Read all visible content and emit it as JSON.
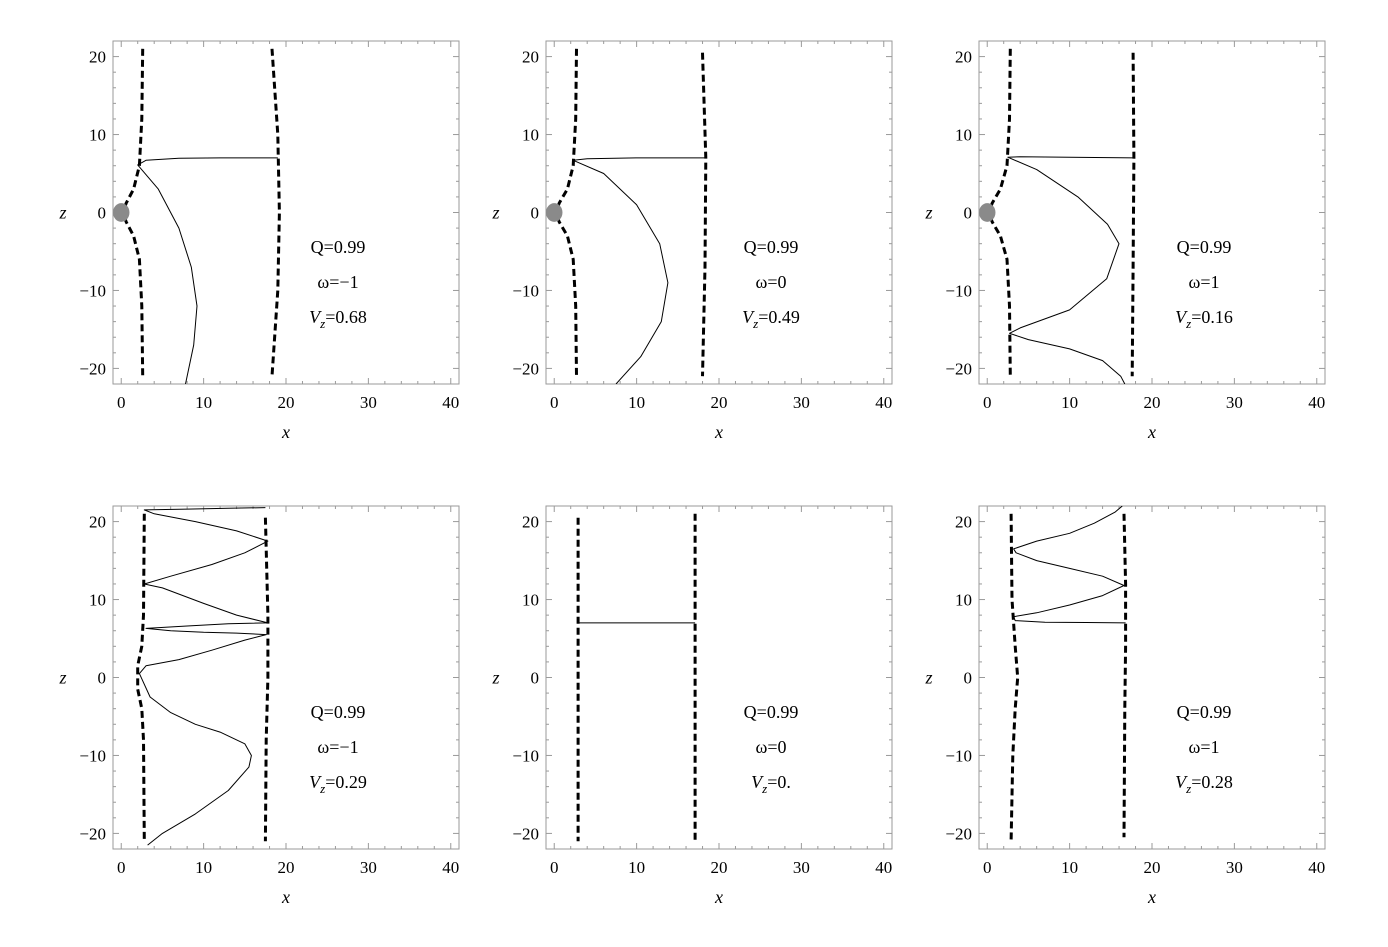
{
  "figure": {
    "panels": [
      {
        "annotation": {
          "q": "Q=0.99",
          "omega": "ω=−1",
          "vz_sym": "V",
          "vz_sub": "z",
          "vz_val": "=0.68"
        }
      },
      {
        "annotation": {
          "q": "Q=0.99",
          "omega": "ω=0",
          "vz_sym": "V",
          "vz_sub": "z",
          "vz_val": "=0.49"
        }
      },
      {
        "annotation": {
          "q": "Q=0.99",
          "omega": "ω=1",
          "vz_sym": "V",
          "vz_sub": "z",
          "vz_val": "=0.16"
        }
      },
      {
        "annotation": {
          "q": "Q=0.99",
          "omega": "ω=−1",
          "vz_sym": "V",
          "vz_sub": "z",
          "vz_val": "=0.29"
        }
      },
      {
        "annotation": {
          "q": "Q=0.99",
          "omega": "ω=0",
          "vz_sym": "V",
          "vz_sub": "z",
          "vz_val": "=0."
        }
      },
      {
        "annotation": {
          "q": "Q=0.99",
          "omega": "ω=1",
          "vz_sym": "V",
          "vz_sub": "z",
          "vz_val": "=0.28"
        }
      }
    ]
  },
  "chart_data": [
    {
      "type": "line",
      "xlabel": "x",
      "ylabel": "z",
      "xlim": [
        -1,
        41
      ],
      "ylim": [
        -22,
        22
      ],
      "xticks": [
        0,
        10,
        20,
        30,
        40
      ],
      "yticks": [
        -20,
        -10,
        0,
        10,
        20
      ],
      "grid": false,
      "black_hole": true,
      "boundaries": [
        [
          [
            2.6,
            21
          ],
          [
            2.5,
            12
          ],
          [
            2.2,
            6
          ],
          [
            1.5,
            3
          ],
          [
            0.6,
            1.2
          ],
          [
            0.4,
            0.6
          ]
        ],
        [
          [
            0.4,
            -0.6
          ],
          [
            0.6,
            -1.2
          ],
          [
            1.5,
            -3
          ],
          [
            2.2,
            -6
          ],
          [
            2.5,
            -12
          ],
          [
            2.6,
            -21
          ]
        ],
        [
          [
            18.3,
            21
          ],
          [
            19,
            10
          ],
          [
            19.2,
            0
          ],
          [
            19,
            -10
          ],
          [
            18.3,
            -21
          ]
        ]
      ],
      "trajectory": [
        [
          19,
          7
        ],
        [
          12,
          7
        ],
        [
          7,
          6.95
        ],
        [
          3,
          6.7
        ],
        [
          2,
          6.1
        ],
        [
          4.5,
          3
        ],
        [
          7,
          -2
        ],
        [
          8.5,
          -7
        ],
        [
          9.2,
          -12
        ],
        [
          8.8,
          -17
        ],
        [
          7.8,
          -22
        ]
      ]
    },
    {
      "type": "line",
      "xlabel": "x",
      "ylabel": "z",
      "xlim": [
        -1,
        41
      ],
      "ylim": [
        -22,
        22
      ],
      "xticks": [
        0,
        10,
        20,
        30,
        40
      ],
      "yticks": [
        -20,
        -10,
        0,
        10,
        20
      ],
      "grid": false,
      "black_hole": true,
      "boundaries": [
        [
          [
            2.7,
            21
          ],
          [
            2.6,
            12
          ],
          [
            2.3,
            6
          ],
          [
            1.6,
            3
          ],
          [
            0.6,
            1.2
          ],
          [
            0.4,
            0.6
          ]
        ],
        [
          [
            0.4,
            -0.6
          ],
          [
            0.6,
            -1.2
          ],
          [
            1.6,
            -3
          ],
          [
            2.3,
            -6
          ],
          [
            2.6,
            -12
          ],
          [
            2.7,
            -21
          ]
        ],
        [
          [
            18,
            20.5
          ],
          [
            18.4,
            7
          ],
          [
            18.3,
            -7
          ],
          [
            18,
            -21
          ]
        ]
      ],
      "trajectory": [
        [
          18.3,
          7
        ],
        [
          10,
          7
        ],
        [
          4,
          6.9
        ],
        [
          2.3,
          6.7
        ],
        [
          6,
          5
        ],
        [
          10,
          1
        ],
        [
          12.8,
          -4
        ],
        [
          13.8,
          -9
        ],
        [
          13,
          -14
        ],
        [
          10.5,
          -18.5
        ],
        [
          7.5,
          -22
        ]
      ]
    },
    {
      "type": "line",
      "xlabel": "x",
      "ylabel": "z",
      "xlim": [
        -1,
        41
      ],
      "ylim": [
        -22,
        22
      ],
      "xticks": [
        0,
        10,
        20,
        30,
        40
      ],
      "yticks": [
        -20,
        -10,
        0,
        10,
        20
      ],
      "grid": false,
      "black_hole": true,
      "boundaries": [
        [
          [
            2.8,
            21
          ],
          [
            2.7,
            12
          ],
          [
            2.4,
            6
          ],
          [
            1.6,
            3
          ],
          [
            0.6,
            1.2
          ],
          [
            0.4,
            0.6
          ]
        ],
        [
          [
            0.4,
            -0.6
          ],
          [
            0.6,
            -1.2
          ],
          [
            1.6,
            -3
          ],
          [
            2.4,
            -6
          ],
          [
            2.7,
            -12
          ],
          [
            2.8,
            -21
          ]
        ],
        [
          [
            17.7,
            20.5
          ],
          [
            17.8,
            7
          ],
          [
            17.7,
            -7
          ],
          [
            17.6,
            -21
          ]
        ]
      ],
      "trajectory": [
        [
          17.8,
          7
        ],
        [
          10,
          7.1
        ],
        [
          4,
          7.15
        ],
        [
          2.5,
          7.1
        ],
        [
          6,
          5.5
        ],
        [
          11,
          2
        ],
        [
          14.6,
          -1.5
        ],
        [
          16,
          -4
        ],
        [
          14.5,
          -8.5
        ],
        [
          10,
          -12.5
        ],
        [
          4,
          -14.8
        ],
        [
          2.7,
          -15.5
        ],
        [
          5,
          -16.3
        ],
        [
          10,
          -17.5
        ],
        [
          14,
          -19
        ],
        [
          16.2,
          -21
        ],
        [
          16.7,
          -22
        ]
      ]
    },
    {
      "type": "line",
      "xlabel": "x",
      "ylabel": "z",
      "xlim": [
        -1,
        41
      ],
      "ylim": [
        -22,
        22
      ],
      "xticks": [
        0,
        10,
        20,
        30,
        40
      ],
      "yticks": [
        -20,
        -10,
        0,
        10,
        20
      ],
      "grid": false,
      "black_hole": false,
      "boundaries": [
        [
          [
            2.8,
            21
          ],
          [
            2.7,
            8
          ],
          [
            2.5,
            4
          ],
          [
            2.0,
            1.5
          ],
          [
            2.0,
            -1.5
          ],
          [
            2.5,
            -4
          ],
          [
            2.7,
            -8
          ],
          [
            2.8,
            -21
          ]
        ],
        [
          [
            17.5,
            20.5
          ],
          [
            17.8,
            8
          ],
          [
            17.8,
            0
          ],
          [
            17.6,
            -8
          ],
          [
            17.5,
            -21
          ]
        ]
      ],
      "trajectory": [
        [
          3.2,
          -21.5
        ],
        [
          5,
          -20
        ],
        [
          9,
          -17.5
        ],
        [
          13,
          -14.5
        ],
        [
          15.5,
          -11.5
        ],
        [
          15.8,
          -10
        ],
        [
          15,
          -8.5
        ],
        [
          12,
          -7
        ],
        [
          9,
          -6
        ],
        [
          6,
          -4.5
        ],
        [
          3.5,
          -2.5
        ],
        [
          2.2,
          0.5
        ],
        [
          3,
          1.5
        ],
        [
          7,
          2.3
        ],
        [
          11,
          3.5
        ],
        [
          15,
          4.8
        ],
        [
          17.6,
          5.5
        ],
        [
          14,
          5.7
        ],
        [
          10,
          5.8
        ],
        [
          6,
          6
        ],
        [
          3,
          6.3
        ],
        [
          8,
          6.6
        ],
        [
          13,
          6.9
        ],
        [
          17.8,
          7
        ],
        [
          14,
          8
        ],
        [
          10,
          9.5
        ],
        [
          5,
          11.5
        ],
        [
          2.8,
          12
        ],
        [
          6,
          13
        ],
        [
          11,
          14.5
        ],
        [
          15,
          16
        ],
        [
          17.8,
          17.5
        ],
        [
          14,
          18.8
        ],
        [
          9,
          20
        ],
        [
          4,
          21
        ],
        [
          2.8,
          21.5
        ],
        [
          8,
          21.6
        ],
        [
          13,
          21.7
        ],
        [
          17.5,
          21.8
        ]
      ]
    },
    {
      "type": "line",
      "xlabel": "x",
      "ylabel": "z",
      "xlim": [
        -1,
        41
      ],
      "ylim": [
        -22,
        22
      ],
      "xticks": [
        0,
        10,
        20,
        30,
        40
      ],
      "yticks": [
        -20,
        -10,
        0,
        10,
        20
      ],
      "grid": false,
      "black_hole": false,
      "boundaries": [
        [
          [
            2.9,
            20.5
          ],
          [
            2.9,
            -21
          ]
        ],
        [
          [
            17.1,
            21
          ],
          [
            17.1,
            -21
          ]
        ]
      ],
      "trajectory": [
        [
          2.9,
          7
        ],
        [
          17.1,
          7
        ]
      ]
    },
    {
      "type": "line",
      "xlabel": "x",
      "ylabel": "z",
      "xlim": [
        -1,
        41
      ],
      "ylim": [
        -22,
        22
      ],
      "xticks": [
        0,
        10,
        20,
        30,
        40
      ],
      "yticks": [
        -20,
        -10,
        0,
        10,
        20
      ],
      "grid": false,
      "black_hole": false,
      "boundaries": [
        [
          [
            2.9,
            21
          ],
          [
            3.0,
            10
          ],
          [
            3.4,
            4
          ],
          [
            3.7,
            0
          ],
          [
            3.4,
            -4
          ],
          [
            3.1,
            -10
          ],
          [
            2.9,
            -21
          ]
        ],
        [
          [
            16.6,
            21
          ],
          [
            16.8,
            12
          ],
          [
            16.8,
            4
          ],
          [
            16.7,
            -4
          ],
          [
            16.6,
            -20.5
          ]
        ]
      ],
      "trajectory": [
        [
          16.8,
          7
        ],
        [
          12,
          7.05
        ],
        [
          7,
          7.1
        ],
        [
          3.4,
          7.3
        ],
        [
          3.2,
          7.8
        ],
        [
          6,
          8.3
        ],
        [
          10,
          9.3
        ],
        [
          14,
          10.5
        ],
        [
          16.6,
          11.8
        ],
        [
          14,
          13
        ],
        [
          10,
          14
        ],
        [
          6,
          15
        ],
        [
          3.5,
          16
        ],
        [
          3.2,
          16.5
        ],
        [
          6,
          17.5
        ],
        [
          10,
          18.5
        ],
        [
          13,
          19.8
        ],
        [
          15.5,
          21.2
        ],
        [
          16.4,
          22
        ]
      ]
    }
  ]
}
